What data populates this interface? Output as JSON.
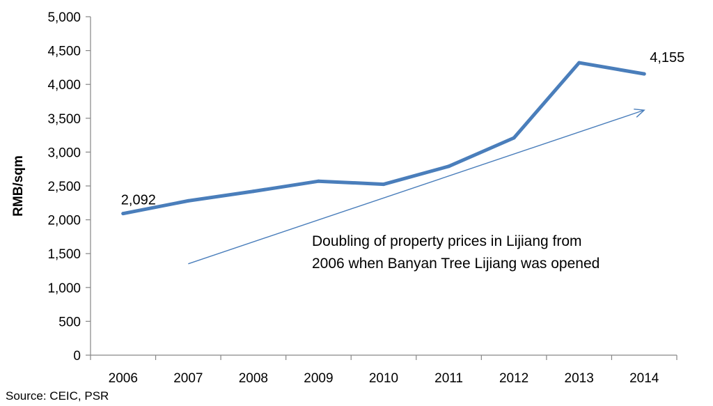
{
  "chart_data": {
    "type": "line",
    "title": "",
    "xlabel": "",
    "ylabel": "RMB/sqm",
    "ylim": [
      0,
      5000
    ],
    "yticks": [
      0,
      500,
      1000,
      1500,
      2000,
      2500,
      3000,
      3500,
      4000,
      4500,
      5000
    ],
    "ytick_labels": [
      "0",
      "500",
      "1,000",
      "1,500",
      "2,000",
      "2,500",
      "3,000",
      "3,500",
      "4,000",
      "4,500",
      "5,000"
    ],
    "categories": [
      "2006",
      "2007",
      "2008",
      "2009",
      "2010",
      "2011",
      "2012",
      "2013",
      "2014"
    ],
    "series": [
      {
        "values": [
          2092,
          2280,
          2420,
          2570,
          2525,
          2790,
          3210,
          4320,
          4155
        ],
        "color": "#4a7ebb"
      }
    ],
    "data_labels": [
      {
        "category": "2006",
        "text": "2,092"
      },
      {
        "category": "2014",
        "text": "4,155"
      }
    ],
    "trend_arrow": {
      "from": {
        "category": "2007",
        "value": 1350
      },
      "to": {
        "category": "2014",
        "value": 3620
      },
      "color": "#4a7ebb"
    },
    "annotation_lines": [
      "Doubling of property prices  in Lijiang from",
      "2006 when Banyan Tree Lijiang was opened"
    ],
    "source": "Source: CEIC, PSR",
    "grid": false,
    "legend": "none"
  }
}
